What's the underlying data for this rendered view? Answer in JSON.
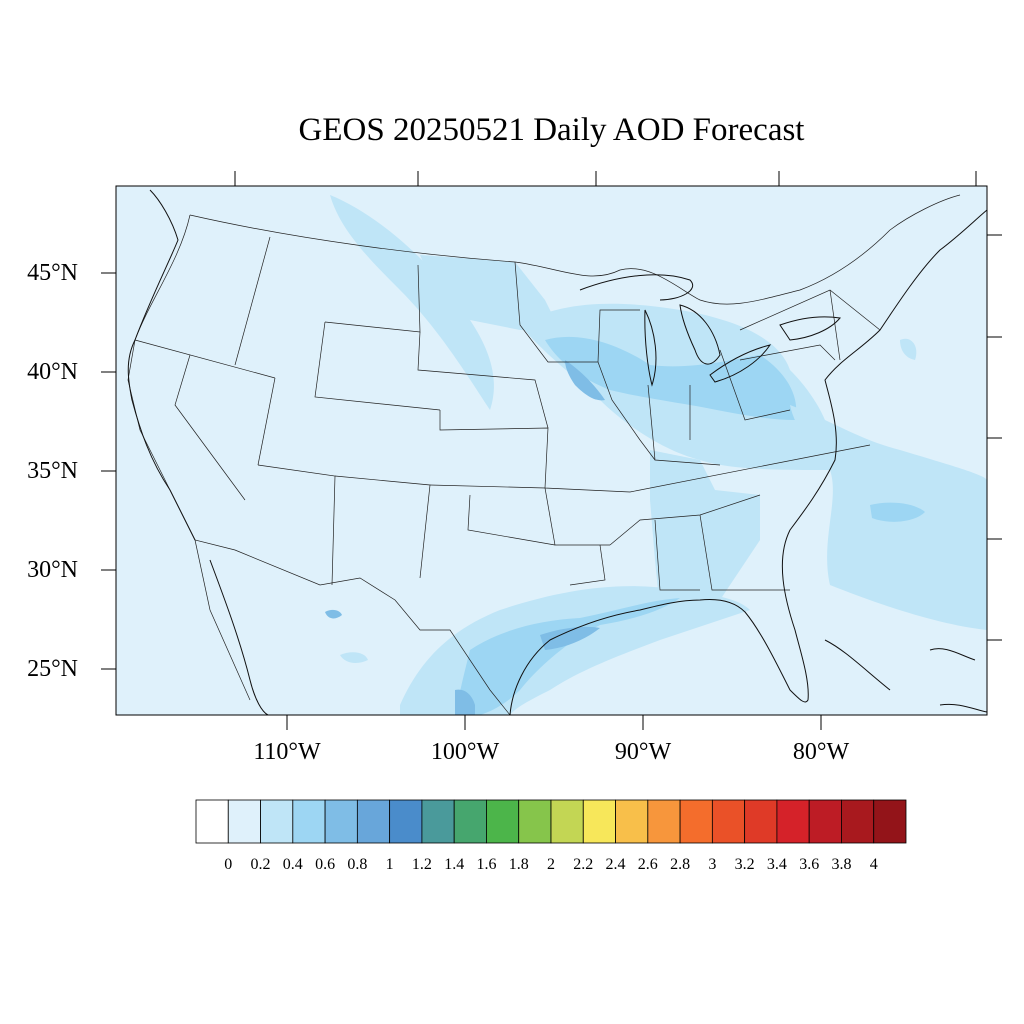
{
  "title": "GEOS 20250521 Daily AOD Forecast",
  "map": {
    "projection": "lambert-conformal",
    "region": "Contiguous United States",
    "background_color": "#dff1fb",
    "lat_labels": [
      "45°N",
      "40°N",
      "35°N",
      "30°N",
      "25°N"
    ],
    "lon_labels": [
      "110°W",
      "100°W",
      "90°W",
      "80°W"
    ]
  },
  "colorbar": {
    "tick_labels": [
      "0",
      "0.2",
      "0.4",
      "0.6",
      "0.8",
      "1",
      "1.2",
      "1.4",
      "1.6",
      "1.8",
      "2",
      "2.2",
      "2.4",
      "2.6",
      "2.8",
      "3",
      "3.2",
      "3.4",
      "3.6",
      "3.8",
      "4"
    ],
    "colors": [
      "#ffffff",
      "#dff1fb",
      "#bfe5f7",
      "#9dd6f3",
      "#7fbde6",
      "#68a6da",
      "#4a8ccb",
      "#4a9a9b",
      "#46a66e",
      "#4cb54a",
      "#86c54b",
      "#c3d654",
      "#f7e75a",
      "#f8bf4a",
      "#f7963c",
      "#f46d2c",
      "#ea5128",
      "#df3a27",
      "#d52229",
      "#bd1c25",
      "#a8191e",
      "#931419"
    ]
  }
}
